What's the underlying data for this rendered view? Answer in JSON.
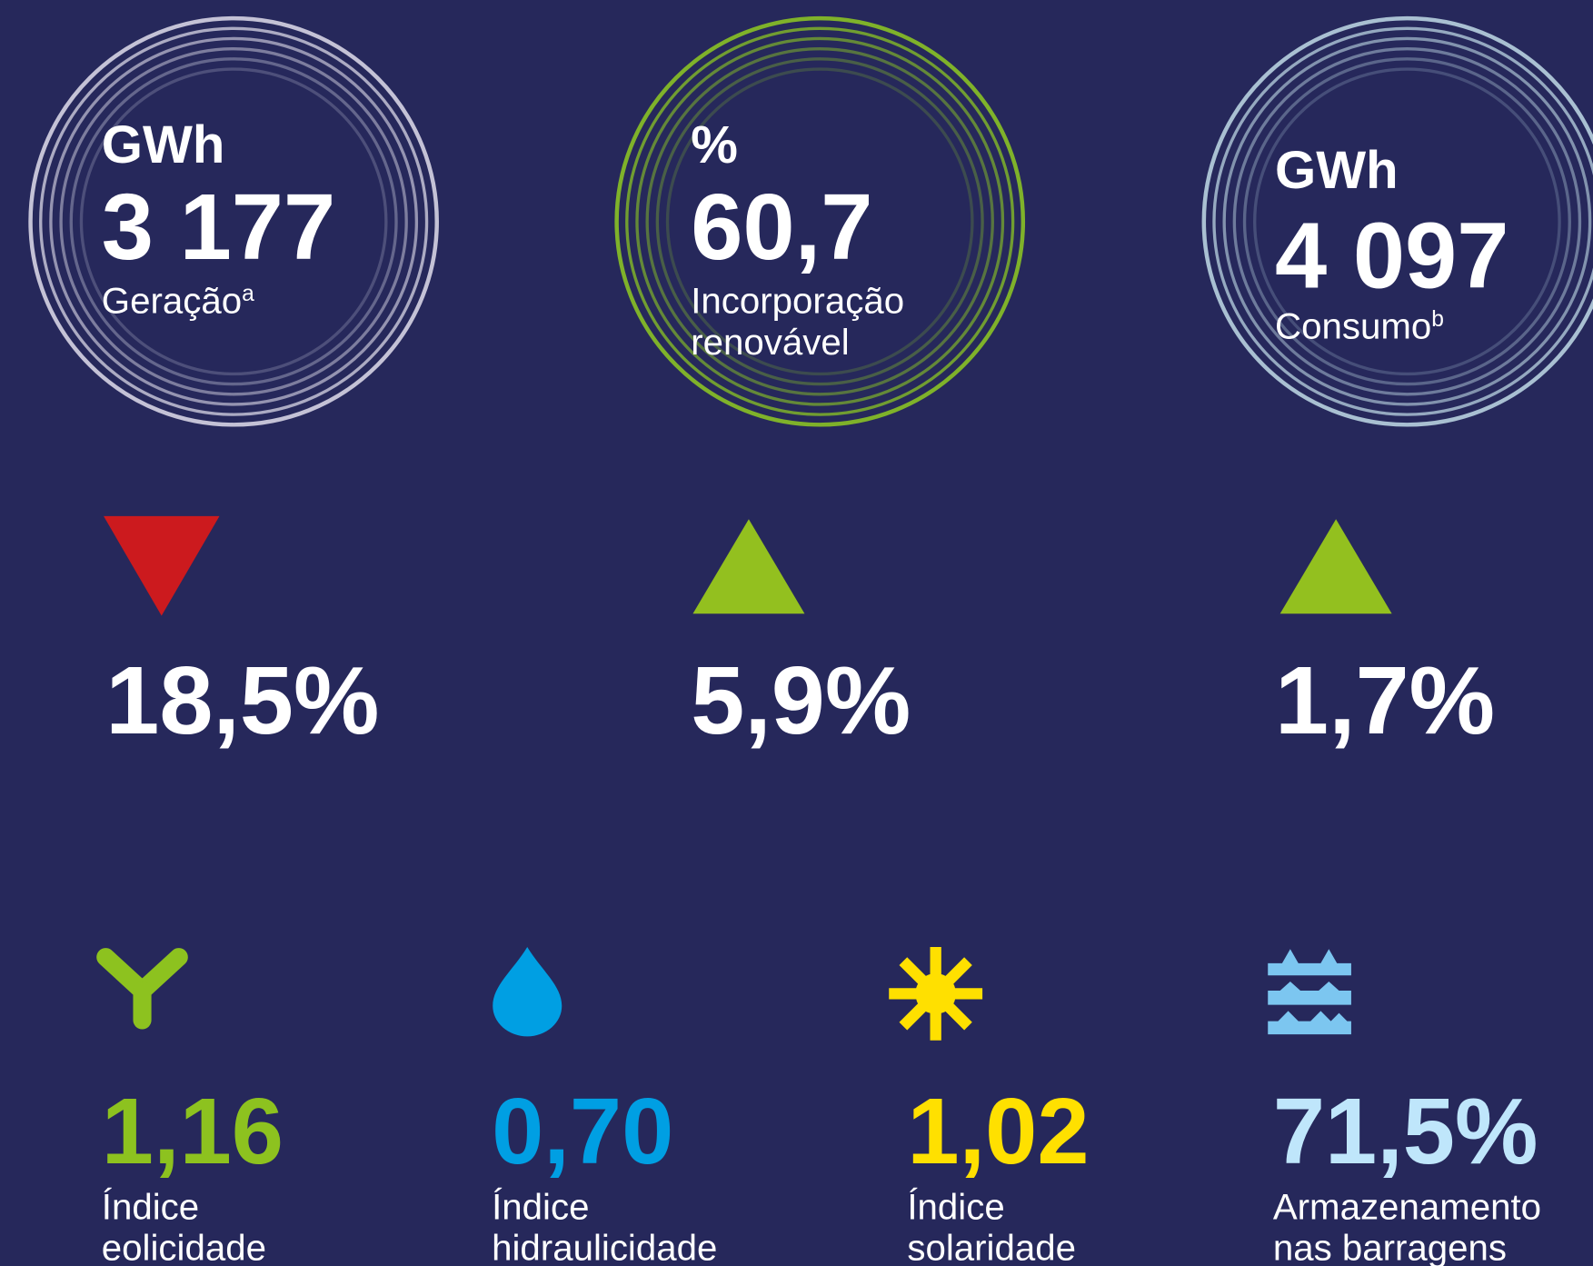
{
  "kpis": [
    {
      "unit": "GWh",
      "value": "3 177",
      "label": [
        "Geração"
      ],
      "sup": "a",
      "ring_color": "#c4c2d6"
    },
    {
      "unit": "%",
      "value": "60,7",
      "label": [
        "Incorporação",
        "renovável"
      ],
      "ring_color": "#7fb22a"
    },
    {
      "unit": "GWh",
      "value": "4 097",
      "label": [
        "Consumo"
      ],
      "sup": "b",
      "ring_color": "#a9c0d2"
    }
  ],
  "changes": [
    {
      "value": "18,5%",
      "direction": "down",
      "color": "#cc1a1e"
    },
    {
      "value": "5,9%",
      "direction": "up",
      "color": "#93c01f"
    },
    {
      "value": "1,7%",
      "direction": "up",
      "color": "#93c01f"
    }
  ],
  "indices": [
    {
      "value": "1,16",
      "label": [
        "Índice",
        "eolicidade"
      ],
      "color": "#8dc21f"
    },
    {
      "value": "0,70",
      "label": [
        "Índice",
        "hidraulicidade"
      ],
      "color": "#009fe3"
    },
    {
      "value": "1,02",
      "label": [
        "Índice",
        "solaridade"
      ],
      "color": "#ffe000"
    },
    {
      "value": "71,5%",
      "label": [
        "Armazenamento",
        "nas barragens"
      ],
      "color": "#bfe6fb"
    }
  ]
}
